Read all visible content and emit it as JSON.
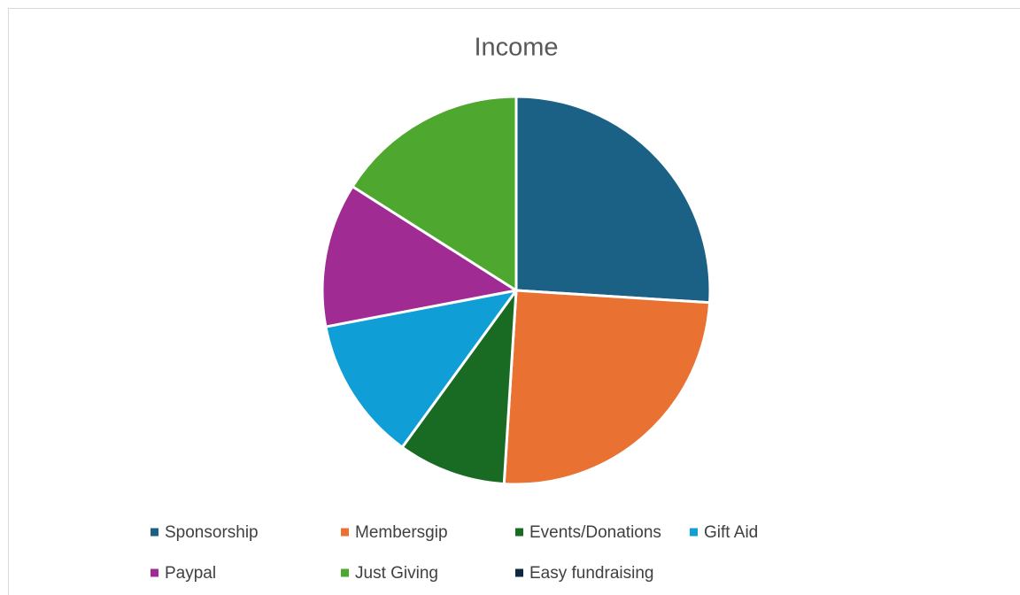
{
  "chart_data": {
    "type": "pie",
    "title": "Income",
    "categories": [
      "Sponsorship",
      "Membersgip",
      "Events/Donations",
      "Gift Aid",
      "Paypal",
      "Just Giving",
      "Easy fundraising"
    ],
    "values": [
      26,
      25,
      9,
      12,
      12,
      16,
      0
    ],
    "colors": [
      "#1a6185",
      "#e97132",
      "#196b24",
      "#0f9ed5",
      "#a02b93",
      "#4ea72e",
      "#0e2841"
    ],
    "legend": "bottom"
  }
}
